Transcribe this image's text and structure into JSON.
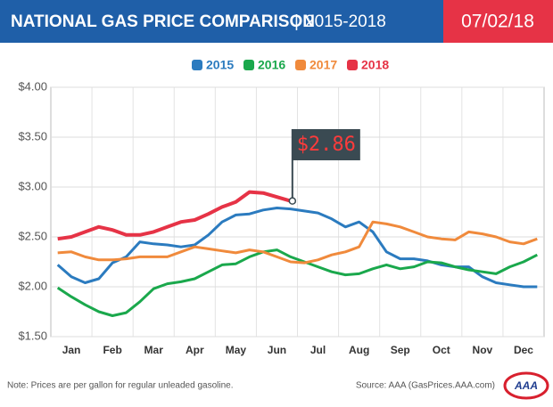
{
  "chart_data": {
    "type": "line",
    "title": "NATIONAL GAS PRICE COMPARISON",
    "subtitle": "2015-2018",
    "date": "07/02/18",
    "categories": [
      null,
      "Jan",
      null,
      null,
      "Feb",
      null,
      null,
      "Mar",
      null,
      null,
      "Apr",
      null,
      null,
      "May",
      null,
      null,
      "Jun",
      null,
      null,
      "Jul",
      null,
      null,
      "Aug",
      null,
      null,
      "Sep",
      null,
      null,
      "Oct",
      null,
      null,
      "Nov",
      null,
      null,
      "Dec",
      null
    ],
    "series": [
      {
        "name": "2015",
        "color": "#2b7bbf",
        "values": [
          2.22,
          2.1,
          2.04,
          2.08,
          2.24,
          2.3,
          2.45,
          2.43,
          2.42,
          2.4,
          2.42,
          2.52,
          2.65,
          2.72,
          2.73,
          2.77,
          2.79,
          2.78,
          2.76,
          2.74,
          2.68,
          2.6,
          2.65,
          2.55,
          2.35,
          2.28,
          2.28,
          2.26,
          2.22,
          2.2,
          2.2,
          2.1,
          2.04,
          2.02,
          2.0,
          2.0
        ]
      },
      {
        "name": "2016",
        "color": "#1aa84c",
        "values": [
          1.99,
          1.9,
          1.82,
          1.75,
          1.71,
          1.74,
          1.85,
          1.98,
          2.03,
          2.05,
          2.08,
          2.15,
          2.22,
          2.23,
          2.3,
          2.35,
          2.37,
          2.3,
          2.25,
          2.2,
          2.15,
          2.12,
          2.13,
          2.18,
          2.22,
          2.18,
          2.2,
          2.25,
          2.24,
          2.2,
          2.17,
          2.15,
          2.13,
          2.2,
          2.25,
          2.32
        ]
      },
      {
        "name": "2017",
        "color": "#f08a3c",
        "values": [
          2.34,
          2.35,
          2.3,
          2.27,
          2.27,
          2.28,
          2.3,
          2.3,
          2.3,
          2.35,
          2.4,
          2.38,
          2.36,
          2.34,
          2.37,
          2.35,
          2.3,
          2.25,
          2.24,
          2.27,
          2.32,
          2.35,
          2.4,
          2.65,
          2.63,
          2.6,
          2.55,
          2.5,
          2.48,
          2.47,
          2.55,
          2.53,
          2.5,
          2.45,
          2.43,
          2.48
        ]
      },
      {
        "name": "2018",
        "color": "#e63346",
        "values": [
          2.48,
          2.5,
          2.55,
          2.6,
          2.57,
          2.52,
          2.52,
          2.55,
          2.6,
          2.65,
          2.67,
          2.73,
          2.8,
          2.85,
          2.95,
          2.94,
          2.9,
          2.86,
          null,
          null,
          null,
          null,
          null,
          null,
          null,
          null,
          null,
          null,
          null,
          null,
          null,
          null,
          null,
          null,
          null,
          null
        ]
      }
    ],
    "annotation": "$2.86",
    "ylim": [
      1.5,
      4.0
    ],
    "yticks": [
      {
        "value": 1.5,
        "label": "$1.50"
      },
      {
        "value": 2.0,
        "label": "$2.00"
      },
      {
        "value": 2.5,
        "label": "$2.50"
      },
      {
        "value": 3.0,
        "label": "$3.00"
      },
      {
        "value": 3.5,
        "label": "$3.50"
      },
      {
        "value": 4.0,
        "label": "$4.00"
      }
    ],
    "grid": true,
    "legend": "top",
    "note": "Note: Prices are per gallon for regular unleaded gasoline.",
    "source": "Source: AAA (GasPrices.AAA.com)",
    "logo": "AAA"
  }
}
